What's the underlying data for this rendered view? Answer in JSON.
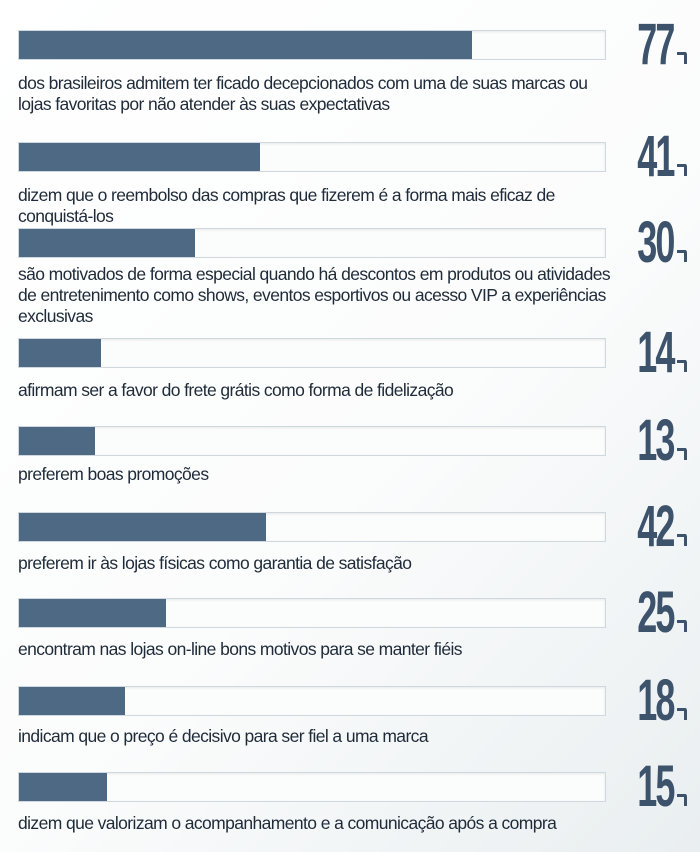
{
  "colors": {
    "bar_fill": "#4e6984",
    "value_text": "#3d526b",
    "caption_text": "#1f2b39"
  },
  "chart_data": {
    "type": "bar",
    "orientation": "horizontal",
    "xlim": [
      0,
      100
    ],
    "values": [
      77,
      41,
      30,
      14,
      13,
      42,
      25,
      18,
      15
    ],
    "value_labels": [
      "77",
      "41",
      "30",
      "14",
      "13",
      "42",
      "25",
      "18",
      "15"
    ],
    "categories": [
      "dos brasileiros admitem ter ficado decepcionados com uma de suas marcas ou lojas favoritas por não atender às suas expectativas",
      "dizem que o reembolso das compras que fizerem é a forma mais eficaz de conquistá-los",
      "são motivados de forma especial quando há descontos em produtos ou atividades de entretenimento como shows, eventos esportivos ou acesso VIP a experiências exclusivas",
      "afirmam ser a favor do frete grátis como forma de fidelização",
      "preferem boas promoções",
      "preferem ir às lojas físicas como garantia de satisfação",
      "encontram nas lojas on-line bons motivos para se manter fiéis",
      "indicam que o preço é decisivo para ser fiel a uma marca",
      "dizem que valorizam o acompanhamento e a comunicação após a compra"
    ],
    "unit_icon": "percent-icon"
  }
}
